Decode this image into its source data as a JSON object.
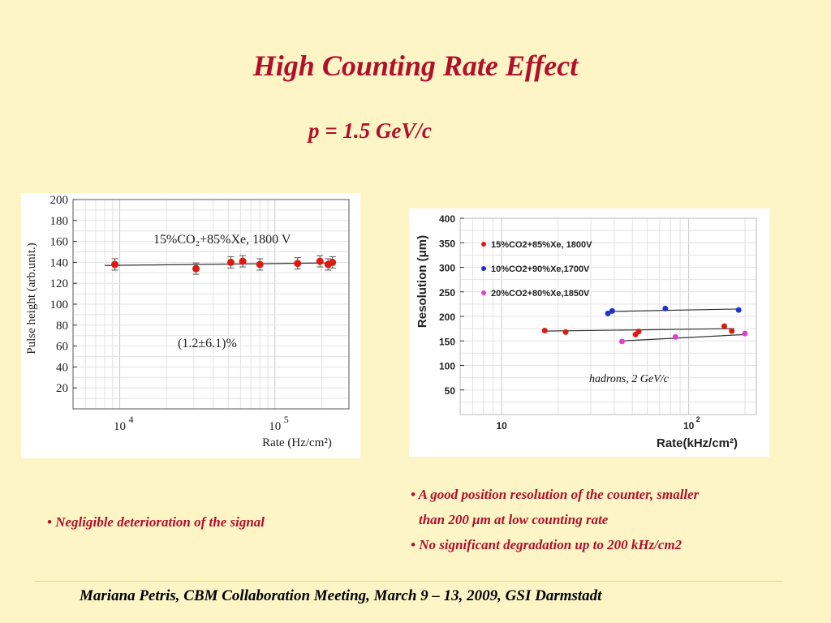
{
  "slide": {
    "title": "High Counting Rate Effect",
    "subtitle": "p = 1.5 GeV/c",
    "left_bullets": [
      "• Negligible deterioration of the signal"
    ],
    "right_bullets": [
      "• A good position resolution of the counter, smaller",
      "than 200 μm at low counting rate",
      "• No significant degradation up to 200 kHz/cm2"
    ],
    "footer": "Mariana Petris, CBM Collaboration Meeting, March 9 – 13, 2009, GSI Darmstadt"
  },
  "chart_data": [
    {
      "type": "scatter",
      "xscale": "log",
      "xlim": [
        5000,
        300000
      ],
      "ylim": [
        0,
        200
      ],
      "yticks": [
        20,
        40,
        60,
        80,
        100,
        120,
        140,
        160,
        180,
        200
      ],
      "xticks": [
        {
          "value": 10000,
          "base": "10",
          "exp": "4"
        },
        {
          "value": 100000,
          "base": "10",
          "exp": "5"
        }
      ],
      "xlabel": "Rate (Hz/cm²)",
      "ylabel": "Pulse height (arb.unit.)",
      "annotations": [
        "15%CO₂+85%Xe, 1800 V",
        "(1.2±6.1)%"
      ],
      "grid": true,
      "series": [
        {
          "name": "15%CO₂+85%Xe, 1800 V",
          "color": "#dd1a12",
          "x": [
            9300,
            31000,
            52000,
            62000,
            80000,
            140000,
            195000,
            220000,
            235000
          ],
          "y": [
            138,
            134,
            140,
            141,
            138,
            139,
            141,
            138,
            140
          ],
          "fit": {
            "x": [
              8000,
              245000
            ],
            "y": [
              137,
              139.5
            ]
          }
        }
      ]
    },
    {
      "type": "scatter",
      "xscale": "log",
      "xlim": [
        6,
        230
      ],
      "ylim": [
        0,
        400
      ],
      "yticks": [
        50,
        100,
        150,
        200,
        250,
        300,
        350,
        400
      ],
      "xticks": [
        {
          "value": 10,
          "base": "10",
          "exp": ""
        },
        {
          "value": 100,
          "base": "10",
          "exp": "2"
        }
      ],
      "xlabel": "Rate(kHz/cm²)",
      "ylabel": "Resolution (μm)",
      "legend_position": "top-left",
      "annotations": [
        "hadrons, 2 GeV/c"
      ],
      "grid": true,
      "series": [
        {
          "name": "15%CO2+85%Xe, 1800V",
          "color": "#dd1a12",
          "x": [
            17,
            22,
            52,
            54,
            155,
            170
          ],
          "y": [
            171,
            168,
            163,
            169,
            180,
            170
          ],
          "fit": {
            "x": [
              17,
              175
            ],
            "y": [
              170,
              175
            ]
          }
        },
        {
          "name": "10%CO2+90%Xe,1700V",
          "color": "#1f33c8",
          "x": [
            37,
            39,
            75,
            185
          ],
          "y": [
            206,
            211,
            216,
            213
          ],
          "fit": {
            "x": [
              38,
              185
            ],
            "y": [
              210,
              215
            ]
          }
        },
        {
          "name": "20%CO2+80%Xe,1850V",
          "color": "#e040d0",
          "x": [
            44,
            85,
            200
          ],
          "y": [
            149,
            158,
            165
          ],
          "fit": {
            "x": [
              44,
              200
            ],
            "y": [
              150,
              163
            ]
          }
        }
      ]
    }
  ]
}
